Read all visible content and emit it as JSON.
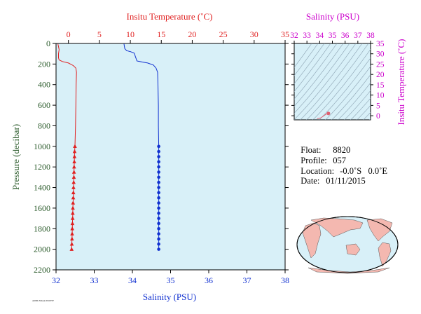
{
  "info": {
    "float_label": "Float:",
    "float_value": "8820",
    "profile_label": "Profile:",
    "profile_value": "057",
    "location_label": "Location:",
    "location_value": "-0.0˚S   0.0˚E",
    "date_label": "Date:",
    "date_value": "01/11/2015"
  },
  "footer_code": "AOML/NOAA 20160707",
  "colors": {
    "temperature": "#e02020",
    "salinity": "#1030d0",
    "pressure_axis": "#2a5a2a",
    "ts_axis": "#cc00cc",
    "plot_bg": "#d8f0f8",
    "land": "#f4b8b0"
  },
  "chart_data": [
    {
      "type": "line",
      "ylabel": "Pressure (decibar)",
      "ylim": [
        2200,
        0
      ],
      "yticks": [
        "0",
        "200",
        "400",
        "600",
        "800",
        "1000",
        "1200",
        "1400",
        "1600",
        "1800",
        "2000",
        "2200"
      ],
      "grid": false,
      "temperature_axis": {
        "label": "Insitu Temperature (˚C)",
        "range": [
          -2,
          35
        ],
        "ticks": [
          "0",
          "5",
          "10",
          "15",
          "20",
          "25",
          "30",
          "35"
        ]
      },
      "salinity_axis": {
        "label": "Salinity (PSU)",
        "range": [
          32,
          38
        ],
        "ticks": [
          "32",
          "33",
          "34",
          "35",
          "36",
          "37",
          "38"
        ]
      },
      "series": [
        {
          "name": "Insitu Temperature (˚C)",
          "line": [
            [
              -1.7,
              5
            ],
            [
              -1.5,
              60
            ],
            [
              -1.6,
              100
            ],
            [
              -1.6,
              140
            ],
            [
              -1.5,
              160
            ],
            [
              -1.0,
              175
            ],
            [
              0.0,
              190
            ],
            [
              0.8,
              215
            ],
            [
              1.2,
              240
            ],
            [
              1.3,
              280
            ],
            [
              1.25,
              400
            ],
            [
              1.2,
              600
            ],
            [
              1.15,
              800
            ],
            [
              1.05,
              1000
            ]
          ],
          "markers": [
            [
              1.05,
              1000
            ],
            [
              1.0,
              1050
            ],
            [
              0.98,
              1100
            ],
            [
              0.95,
              1150
            ],
            [
              0.92,
              1200
            ],
            [
              0.9,
              1250
            ],
            [
              0.88,
              1300
            ],
            [
              0.85,
              1350
            ],
            [
              0.82,
              1400
            ],
            [
              0.8,
              1450
            ],
            [
              0.78,
              1500
            ],
            [
              0.75,
              1550
            ],
            [
              0.72,
              1600
            ],
            [
              0.7,
              1650
            ],
            [
              0.68,
              1700
            ],
            [
              0.65,
              1750
            ],
            [
              0.62,
              1800
            ],
            [
              0.6,
              1850
            ],
            [
              0.58,
              1900
            ],
            [
              0.55,
              1950
            ],
            [
              0.52,
              2000
            ]
          ]
        },
        {
          "name": "Salinity (PSU)",
          "line": [
            [
              33.78,
              5
            ],
            [
              33.8,
              50
            ],
            [
              33.85,
              70
            ],
            [
              33.95,
              80
            ],
            [
              34.05,
              95
            ],
            [
              34.08,
              130
            ],
            [
              34.12,
              170
            ],
            [
              34.25,
              180
            ],
            [
              34.4,
              190
            ],
            [
              34.55,
              210
            ],
            [
              34.62,
              240
            ],
            [
              34.66,
              280
            ],
            [
              34.67,
              400
            ],
            [
              34.68,
              600
            ],
            [
              34.68,
              800
            ],
            [
              34.69,
              1000
            ]
          ],
          "markers": [
            [
              34.69,
              1000
            ],
            [
              34.69,
              1050
            ],
            [
              34.69,
              1100
            ],
            [
              34.69,
              1150
            ],
            [
              34.69,
              1200
            ],
            [
              34.69,
              1250
            ],
            [
              34.69,
              1300
            ],
            [
              34.69,
              1350
            ],
            [
              34.69,
              1400
            ],
            [
              34.69,
              1450
            ],
            [
              34.69,
              1500
            ],
            [
              34.69,
              1550
            ],
            [
              34.69,
              1600
            ],
            [
              34.69,
              1650
            ],
            [
              34.69,
              1700
            ],
            [
              34.69,
              1750
            ],
            [
              34.69,
              1800
            ],
            [
              34.69,
              1850
            ],
            [
              34.69,
              1900
            ],
            [
              34.69,
              1950
            ],
            [
              34.69,
              2000
            ]
          ]
        }
      ]
    },
    {
      "type": "scatter",
      "xlabel": "Salinity (PSU)",
      "ylabel": "Insitu Temperature (˚C)",
      "xlim": [
        32,
        38
      ],
      "ylim": [
        -2,
        35
      ],
      "xticks": [
        "32",
        "33",
        "34",
        "35",
        "36",
        "37",
        "38"
      ],
      "yticks": [
        "0",
        "5",
        "10",
        "15",
        "20",
        "25",
        "30",
        "35"
      ],
      "points": [
        [
          33.8,
          -1.5
        ],
        [
          34.1,
          -1.0
        ],
        [
          34.45,
          0.5
        ],
        [
          34.6,
          1.1
        ],
        [
          34.69,
          1.2
        ],
        [
          34.69,
          0.6
        ]
      ],
      "highlight_point": [
        34.69,
        1.1
      ],
      "density_contours": true
    }
  ]
}
